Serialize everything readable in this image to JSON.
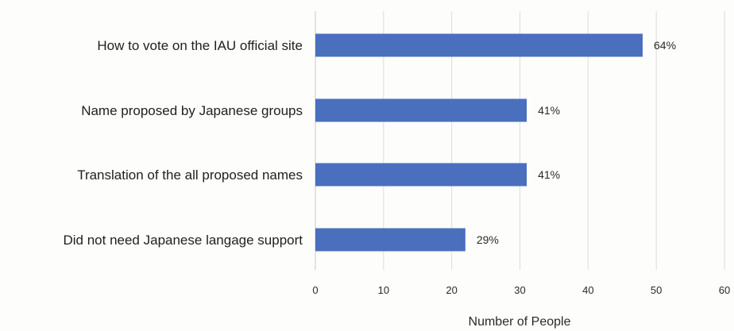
{
  "chart_data": {
    "type": "bar",
    "orientation": "horizontal",
    "categories": [
      "How to vote on the IAU official site",
      "Name proposed by Japanese groups",
      "Translation of the all proposed names",
      "Did not need Japanese langage support"
    ],
    "values": [
      48,
      31,
      31,
      22
    ],
    "data_labels": [
      "64%",
      "41%",
      "41%",
      "29%"
    ],
    "xlabel": "Number of People",
    "ylabel": "",
    "xlim": [
      0,
      60
    ],
    "x_ticks": [
      0,
      10,
      20,
      30,
      40,
      50,
      60
    ],
    "grid": true,
    "bar_color": "#4a6fbc"
  }
}
